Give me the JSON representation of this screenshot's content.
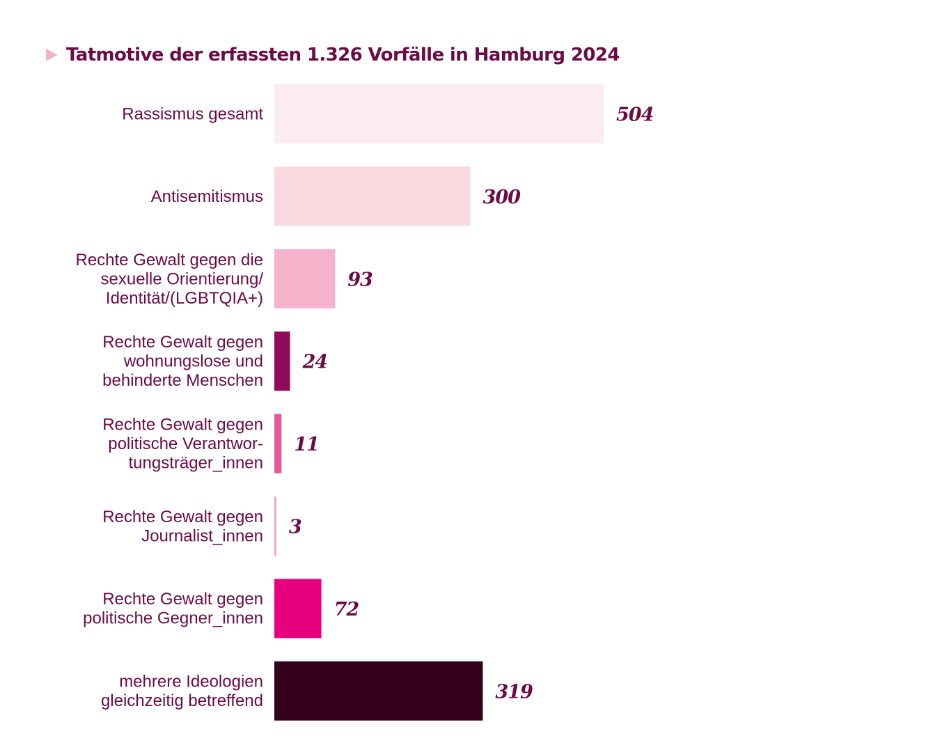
{
  "chart_data": {
    "type": "bar",
    "orientation": "horizontal",
    "title": "Tatmotive der erfassten 1.326 Vorfälle in Hamburg 2024",
    "categories": [
      "Rassismus gesamt",
      "Antisemitismus",
      "Rechte Gewalt gegen die\nsexuelle Orientierung/\nIdentität/(LGBTQIA+)",
      "Rechte Gewalt gegen\nwohnungslose und\nbehinderte Menschen",
      "Rechte Gewalt gegen\npolitische Verantwor-\ntungsträger_innen",
      "Rechte Gewalt gegen\nJournalist_innen",
      "Rechte Gewalt gegen\npolitische Gegner_innen",
      "mehrere Ideologien\ngleichzeitig betreffend"
    ],
    "values": [
      504,
      300,
      93,
      24,
      11,
      3,
      72,
      319
    ],
    "colors": [
      "#fcecf1",
      "#f9d9e0",
      "#f5b3cb",
      "#8f0b5a",
      "#e8579a",
      "#f5a0c4",
      "#e6007e",
      "#33001c"
    ],
    "text_color": "#6b0a45",
    "accent_color": "#f5b3cb",
    "xlim": [
      0,
      504
    ],
    "grid": false,
    "axes_visible": false
  }
}
